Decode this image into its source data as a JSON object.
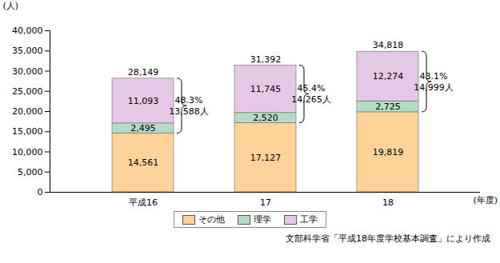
{
  "chart_data": {
    "type": "bar",
    "stacked": true,
    "data_labels": true,
    "grid": false,
    "legend": "bottom",
    "y_label": "(人)",
    "x_label": "(年度)",
    "categories": [
      "平成16",
      "17",
      "18"
    ],
    "ylim": [
      0,
      40000
    ],
    "yticks": [
      0,
      {
        "value": 5000,
        "label": "5,000"
      },
      {
        "value": 10000,
        "label": "10,000"
      },
      {
        "value": 15000,
        "label": "15,000"
      },
      {
        "value": 20000,
        "label": "20,000"
      },
      {
        "value": 25000,
        "label": "25,000"
      },
      {
        "value": 30000,
        "label": "30,000"
      },
      {
        "value": 35000,
        "label": "35,000"
      },
      {
        "value": 40000,
        "label": "40,000"
      }
    ],
    "series": [
      {
        "name": "その他",
        "color": "#fdd39a",
        "values": [
          14561,
          17127,
          19819
        ],
        "value_labels": [
          "14,561",
          "17,127",
          "19,819"
        ]
      },
      {
        "name": "理学",
        "color": "#b4dcc6",
        "values": [
          2495,
          2520,
          2725
        ],
        "value_labels": [
          "2,495",
          "2,520",
          "2,725"
        ]
      },
      {
        "name": "工学",
        "color": "#e4c8e6",
        "values": [
          11093,
          11745,
          12274
        ],
        "value_labels": [
          "11,093",
          "11,745",
          "12,274"
        ]
      }
    ],
    "totals": [
      28149,
      31392,
      34818
    ],
    "total_labels": [
      "28,149",
      "31,392",
      "34,818"
    ],
    "brace_series": [
      "理学",
      "工学"
    ],
    "annotations": [
      {
        "category": "平成16",
        "share": 48.3,
        "share_label": "48.3%",
        "count": 13588,
        "count_label": "13,588人"
      },
      {
        "category": "17",
        "share": 45.4,
        "share_label": "45.4%",
        "count": 14265,
        "count_label": "14,265人"
      },
      {
        "category": "18",
        "share": 43.1,
        "share_label": "43.1%",
        "count": 14999,
        "count_label": "14,999人"
      }
    ],
    "source": "文部科学省「平成18年度学校基本調査」により作成"
  }
}
